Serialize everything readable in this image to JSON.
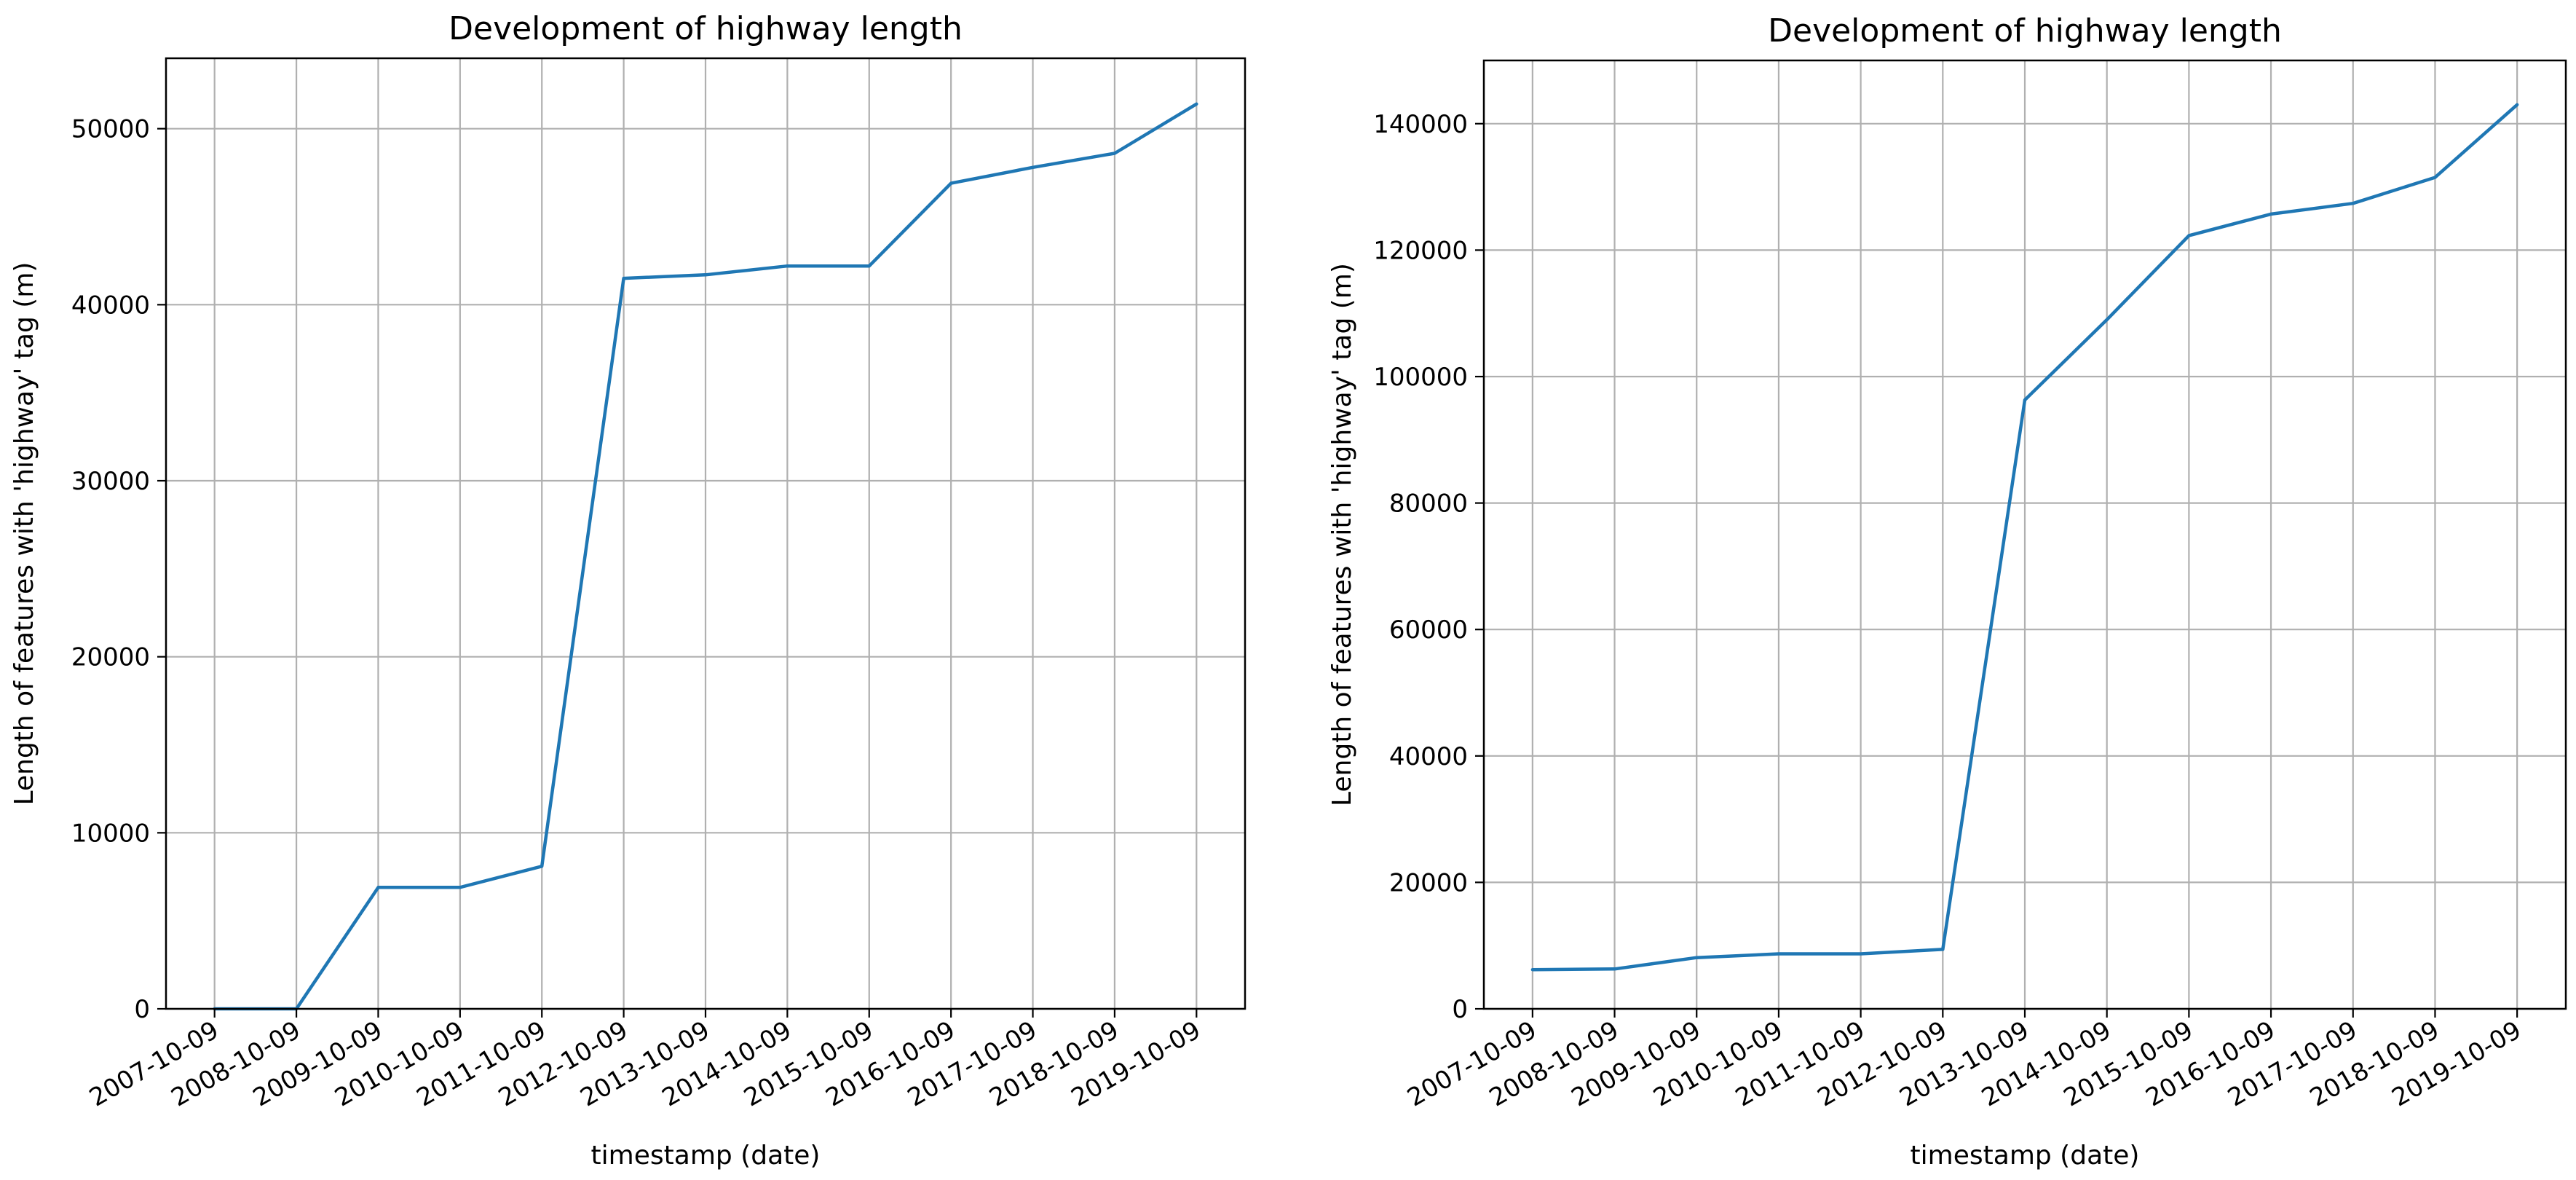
{
  "chart_data": [
    {
      "type": "line",
      "title": "Development of highway length",
      "xlabel": "timestamp (date)",
      "ylabel": "Length of features with 'highway' tag (m)",
      "x": [
        "2007-10-09",
        "2008-10-09",
        "2009-10-09",
        "2010-10-09",
        "2011-10-09",
        "2012-10-09",
        "2013-10-09",
        "2014-10-09",
        "2015-10-09",
        "2016-10-09",
        "2017-10-09",
        "2018-10-09",
        "2019-10-09"
      ],
      "series": [
        {
          "values": [
            0,
            0,
            6900,
            6900,
            8100,
            41500,
            41700,
            42200,
            42200,
            46900,
            47800,
            48600,
            51400
          ]
        }
      ],
      "ylim": [
        0,
        54000
      ],
      "yticks": [
        0,
        10000,
        20000,
        30000,
        40000,
        50000
      ],
      "grid": true,
      "color": "#1f77b4"
    },
    {
      "type": "line",
      "title": "Development of highway length",
      "xlabel": "timestamp (date)",
      "ylabel": "Length of features with 'highway' tag (m)",
      "x": [
        "2007-10-09",
        "2008-10-09",
        "2009-10-09",
        "2010-10-09",
        "2011-10-09",
        "2012-10-09",
        "2013-10-09",
        "2014-10-09",
        "2015-10-09",
        "2016-10-09",
        "2017-10-09",
        "2018-10-09",
        "2019-10-09"
      ],
      "series": [
        {
          "values": [
            6200,
            6300,
            8100,
            8700,
            8700,
            9400,
            96300,
            109000,
            122300,
            125700,
            127400,
            131500,
            143000
          ]
        }
      ],
      "ylim": [
        0,
        150000
      ],
      "yticks": [
        0,
        20000,
        40000,
        60000,
        80000,
        100000,
        120000,
        140000
      ],
      "grid": true,
      "color": "#1f77b4"
    }
  ]
}
